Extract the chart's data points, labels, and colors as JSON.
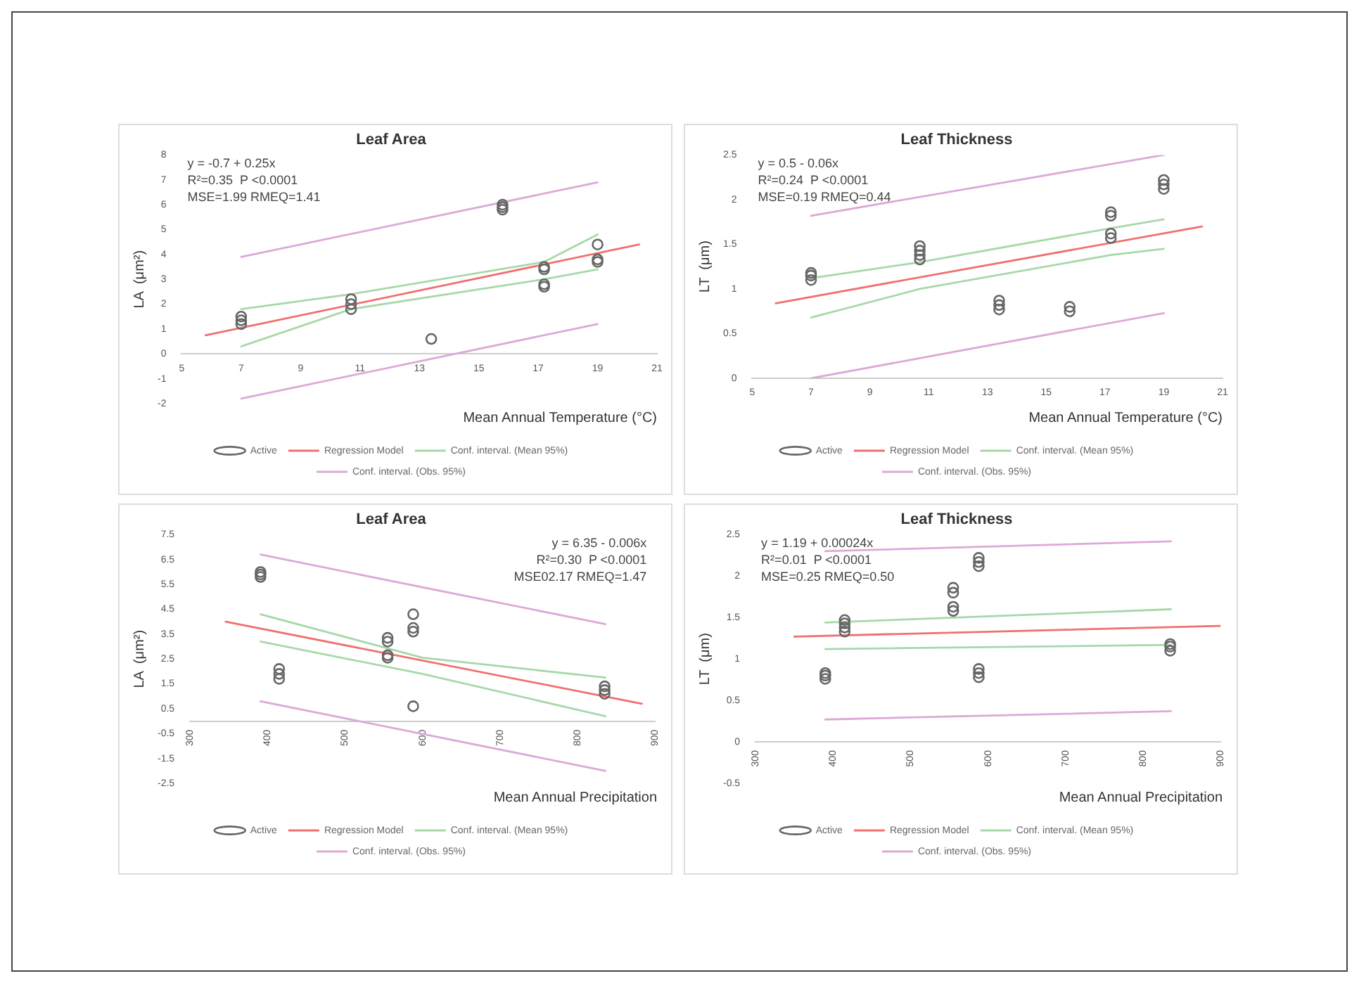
{
  "chart_data": [
    {
      "type": "scatter",
      "title": "Leaf Area",
      "xlabel": "Mean Annual Temperature (°C)",
      "ylabel": "LA  (μm²)",
      "xlim": [
        5,
        21
      ],
      "xticks": [
        5,
        7,
        9,
        11,
        13,
        15,
        17,
        19,
        21
      ],
      "ylim": [
        -2,
        8
      ],
      "yticks": [
        -2,
        -1,
        0,
        1,
        2,
        3,
        4,
        5,
        6,
        7,
        8
      ],
      "legend": "bottom",
      "grid": false,
      "annotations": [
        "y = -0.7 + 0.25x",
        "R²=0.35  P <0.0001",
        "MSE=1.99 RMEQ=1.41"
      ],
      "series": [
        {
          "name": "Active",
          "marker": "circle",
          "color": "#666666",
          "x": [
            7,
            7,
            7,
            10.7,
            10.7,
            10.7,
            13.4,
            15.8,
            15.8,
            15.8,
            17.2,
            17.2,
            17.2,
            17.2,
            19,
            19,
            19
          ],
          "values": [
            1.2,
            1.35,
            1.5,
            1.8,
            2.0,
            2.2,
            0.6,
            5.8,
            5.9,
            6.0,
            2.7,
            2.8,
            3.4,
            3.5,
            3.7,
            3.8,
            4.4
          ]
        },
        {
          "name": "Regression Model",
          "type": "line",
          "marker": "none",
          "color": "#f07070",
          "x": [
            5.8,
            20.4
          ],
          "values": [
            0.75,
            4.4
          ]
        },
        {
          "name": "Conf. interval. (Mean 95%)",
          "type": "line",
          "marker": "none",
          "color": "#a8d8a8",
          "x": [
            7,
            10.7,
            17.2,
            19
          ],
          "values": [
            1.8,
            2.4,
            3.7,
            4.8
          ]
        },
        {
          "type": "line",
          "marker": "none",
          "color": "#a8d8a8",
          "x": [
            7,
            10.7,
            17.2,
            19
          ],
          "values": [
            0.3,
            1.8,
            3.0,
            3.4
          ]
        },
        {
          "name": "Conf. interval. (Obs. 95%)",
          "type": "line",
          "marker": "none",
          "color": "#dda8d8",
          "x": [
            7,
            19
          ],
          "values": [
            3.9,
            6.9
          ]
        },
        {
          "type": "line",
          "marker": "none",
          "color": "#dda8d8",
          "x": [
            7,
            19
          ],
          "values": [
            -1.8,
            1.2
          ]
        }
      ]
    },
    {
      "type": "scatter",
      "title": "Leaf Thickness",
      "xlabel": "Mean Annual Temperature (°C)",
      "ylabel": "LT  (μm)",
      "xlim": [
        5,
        21
      ],
      "xticks": [
        5,
        7,
        9,
        11,
        13,
        15,
        17,
        19,
        21
      ],
      "ylim": [
        0,
        2.5
      ],
      "yticks": [
        0,
        0.5,
        1,
        1.5,
        2,
        2.5
      ],
      "legend": "bottom",
      "grid": false,
      "annotations": [
        "y = 0.5 - 0.06x",
        "R²=0.24  P <0.0001",
        "MSE=0.19 RMEQ=0.44"
      ],
      "series": [
        {
          "name": "Active",
          "marker": "circle",
          "color": "#666666",
          "x": [
            7,
            7,
            7,
            10.7,
            10.7,
            10.7,
            10.7,
            13.4,
            13.4,
            13.4,
            15.8,
            15.8,
            17.2,
            17.2,
            17.2,
            17.2,
            19,
            19,
            19
          ],
          "values": [
            1.1,
            1.15,
            1.18,
            1.33,
            1.38,
            1.43,
            1.48,
            0.77,
            0.82,
            0.87,
            0.75,
            0.8,
            1.57,
            1.62,
            1.82,
            1.86,
            2.12,
            2.17,
            2.22
          ]
        },
        {
          "name": "Regression Model",
          "type": "line",
          "marker": "none",
          "color": "#f07070",
          "x": [
            5.8,
            20.3
          ],
          "values": [
            0.84,
            1.7
          ]
        },
        {
          "name": "Conf. interval. (Mean 95%)",
          "type": "line",
          "marker": "none",
          "color": "#a8d8a8",
          "x": [
            7,
            10.7,
            17.2,
            19
          ],
          "values": [
            1.12,
            1.3,
            1.68,
            1.78
          ]
        },
        {
          "type": "line",
          "marker": "none",
          "color": "#a8d8a8",
          "x": [
            7,
            10.7,
            17.2,
            19
          ],
          "values": [
            0.68,
            1.0,
            1.38,
            1.45
          ]
        },
        {
          "name": "Conf. interval. (Obs. 95%)",
          "type": "line",
          "marker": "none",
          "color": "#dda8d8",
          "x": [
            7,
            19
          ],
          "values": [
            1.82,
            2.5
          ]
        },
        {
          "type": "line",
          "marker": "none",
          "color": "#dda8d8",
          "x": [
            7,
            19
          ],
          "values": [
            0,
            0.73
          ]
        }
      ]
    },
    {
      "type": "scatter",
      "title": "Leaf Area",
      "xlabel": "Mean Annual Precipitation",
      "ylabel": "LA  (μm²)",
      "xlim": [
        300,
        900
      ],
      "xticks": [
        300,
        400,
        500,
        600,
        700,
        800,
        900
      ],
      "ylim": [
        -2.5,
        7.5
      ],
      "yticks": [
        -2.5,
        -1.5,
        -0.5,
        0.5,
        1.5,
        2.5,
        3.5,
        4.5,
        5.5,
        6.5,
        7.5
      ],
      "legend": "bottom",
      "grid": false,
      "annotations": [
        "y = 6.35 - 0.006x",
        "R²=0.30  P <0.0001",
        "MSE02.17 RMEQ=1.47"
      ],
      "series": [
        {
          "name": "Active",
          "marker": "circle",
          "color": "#666666",
          "x": [
            391,
            391,
            391,
            415,
            415,
            415,
            555,
            555,
            555,
            555,
            588,
            588,
            588,
            588,
            835,
            835,
            835
          ],
          "values": [
            5.8,
            5.9,
            6.0,
            1.7,
            1.9,
            2.1,
            2.55,
            2.65,
            3.2,
            3.35,
            0.6,
            3.6,
            3.75,
            4.3,
            1.1,
            1.25,
            1.4
          ]
        },
        {
          "name": "Regression Model",
          "type": "line",
          "marker": "none",
          "color": "#f07070",
          "x": [
            346,
            883
          ],
          "values": [
            4.0,
            0.7
          ]
        },
        {
          "name": "Conf. interval. (Mean 95%)",
          "type": "line",
          "marker": "none",
          "color": "#a8d8a8",
          "x": [
            391,
            600,
            836
          ],
          "values": [
            4.3,
            2.55,
            1.75
          ]
        },
        {
          "type": "line",
          "marker": "none",
          "color": "#a8d8a8",
          "x": [
            391,
            600,
            836
          ],
          "values": [
            3.2,
            1.9,
            0.2
          ]
        },
        {
          "name": "Conf. interval. (Obs. 95%)",
          "type": "line",
          "marker": "none",
          "color": "#dda8d8",
          "x": [
            391,
            836
          ],
          "values": [
            6.7,
            3.9
          ]
        },
        {
          "type": "line",
          "marker": "none",
          "color": "#dda8d8",
          "x": [
            391,
            836
          ],
          "values": [
            0.8,
            -2.0
          ]
        }
      ]
    },
    {
      "type": "scatter",
      "title": "Leaf Thickness",
      "xlabel": "Mean Annual Precipitation",
      "ylabel": "LT  (μm)",
      "xlim": [
        300,
        900
      ],
      "xticks": [
        300,
        400,
        500,
        600,
        700,
        800,
        900
      ],
      "ylim": [
        -0.5,
        2.5
      ],
      "yticks": [
        -0.5,
        0,
        0.5,
        1,
        1.5,
        2,
        2.5
      ],
      "legend": "bottom",
      "grid": false,
      "annotations": [
        "y = 1.19 + 0.00024x",
        "R²=0.01  P <0.0001",
        "MSE=0.25 RMEQ=0.50"
      ],
      "series": [
        {
          "name": "Active",
          "marker": "circle",
          "color": "#666666",
          "x": [
            390,
            390,
            390,
            415,
            415,
            415,
            415,
            555,
            555,
            555,
            555,
            588,
            588,
            588,
            588,
            588,
            588,
            835,
            835,
            835
          ],
          "values": [
            0.76,
            0.8,
            0.83,
            1.33,
            1.38,
            1.43,
            1.47,
            1.58,
            1.63,
            1.8,
            1.86,
            0.78,
            0.83,
            0.88,
            2.12,
            2.17,
            2.22,
            1.1,
            1.15,
            1.18
          ]
        },
        {
          "name": "Regression Model",
          "type": "line",
          "marker": "none",
          "color": "#f07070",
          "x": [
            350,
            900
          ],
          "values": [
            1.27,
            1.4
          ]
        },
        {
          "name": "Conf. interval. (Mean 95%)",
          "type": "line",
          "marker": "none",
          "color": "#a8d8a8",
          "x": [
            390,
            836
          ],
          "values": [
            1.44,
            1.6
          ]
        },
        {
          "type": "line",
          "marker": "none",
          "color": "#a8d8a8",
          "x": [
            390,
            836
          ],
          "values": [
            1.12,
            1.17
          ]
        },
        {
          "name": "Conf. interval. (Obs. 95%)",
          "type": "line",
          "marker": "none",
          "color": "#dda8d8",
          "x": [
            390,
            836
          ],
          "values": [
            2.3,
            2.42
          ]
        },
        {
          "type": "line",
          "marker": "none",
          "color": "#dda8d8",
          "x": [
            390,
            836
          ],
          "values": [
            0.27,
            0.37
          ]
        }
      ]
    }
  ]
}
